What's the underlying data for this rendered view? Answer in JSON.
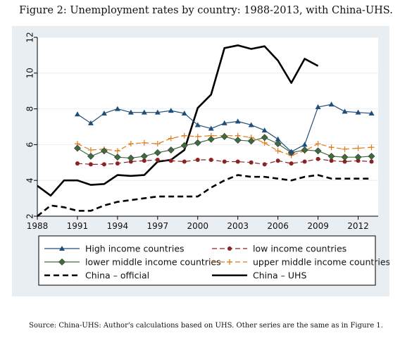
{
  "figure": {
    "title": "Figure 2: Unemployment rates by country: 1988-2013, with China-UHS.",
    "source": "Source: China-UHS: Author's calculations based on UHS. Other series are the same as in Figure 1."
  },
  "chart_data": {
    "type": "line",
    "title": "",
    "xlabel": "",
    "ylabel": "",
    "xlim": [
      1988,
      2013.5
    ],
    "ylim": [
      2,
      12
    ],
    "x_ticks": [
      1988,
      1991,
      1994,
      1997,
      2000,
      2003,
      2006,
      2009,
      2012
    ],
    "y_ticks": [
      2,
      4,
      6,
      8,
      10,
      12
    ],
    "grid": "horizontal",
    "legend_position": "bottom",
    "colors": {
      "background": "#e9eef3",
      "grid": "#ffffff",
      "high_income": "#1f4e79",
      "low_income": "#8b2323",
      "lower_middle": "#3f6b3f",
      "upper_middle": "#e07b18",
      "china": "#000000"
    },
    "series": [
      {
        "name": "High income countries",
        "key": "high_income",
        "marker": "triangle",
        "dash": "solid",
        "x": [
          1991,
          1992,
          1993,
          1994,
          1995,
          1996,
          1997,
          1998,
          1999,
          2000,
          2001,
          2002,
          2003,
          2004,
          2005,
          2006,
          2007,
          2008,
          2009,
          2010,
          2011,
          2012,
          2013
        ],
        "y": [
          7.7,
          7.2,
          7.75,
          8.0,
          7.8,
          7.8,
          7.8,
          7.9,
          7.75,
          7.1,
          6.9,
          7.2,
          7.3,
          7.1,
          6.8,
          6.3,
          5.6,
          6.0,
          8.1,
          8.25,
          7.85,
          7.8,
          7.75
        ]
      },
      {
        "name": "low income countries",
        "key": "low_income",
        "marker": "circle",
        "dash": "dash",
        "x": [
          1991,
          1992,
          1993,
          1994,
          1995,
          1996,
          1997,
          1998,
          1999,
          2000,
          2001,
          2002,
          2003,
          2004,
          2005,
          2006,
          2007,
          2008,
          2009,
          2010,
          2011,
          2012,
          2013
        ],
        "y": [
          4.95,
          4.9,
          4.9,
          4.95,
          5.05,
          5.1,
          5.15,
          5.1,
          5.05,
          5.15,
          5.15,
          5.05,
          5.05,
          5.0,
          4.9,
          5.1,
          4.95,
          5.05,
          5.2,
          5.1,
          5.05,
          5.1,
          5.05
        ]
      },
      {
        "name": "lower middle income countries",
        "key": "lower_middle",
        "marker": "diamond",
        "dash": "solid",
        "x": [
          1991,
          1992,
          1993,
          1994,
          1995,
          1996,
          1997,
          1998,
          1999,
          2000,
          2001,
          2002,
          2003,
          2004,
          2005,
          2006,
          2007,
          2008,
          2009,
          2010,
          2011,
          2012,
          2013
        ],
        "y": [
          5.8,
          5.35,
          5.65,
          5.3,
          5.25,
          5.35,
          5.55,
          5.7,
          5.95,
          6.1,
          6.3,
          6.45,
          6.25,
          6.2,
          6.4,
          6.05,
          5.55,
          5.7,
          5.65,
          5.35,
          5.3,
          5.3,
          5.35
        ]
      },
      {
        "name": "upper middle income countries",
        "key": "upper_middle",
        "marker": "plus",
        "dash": "dash",
        "x": [
          1991,
          1992,
          1993,
          1994,
          1995,
          1996,
          1997,
          1998,
          1999,
          2000,
          2001,
          2002,
          2003,
          2004,
          2005,
          2006,
          2007,
          2008,
          2009,
          2010,
          2011,
          2012,
          2013
        ],
        "y": [
          6.05,
          5.7,
          5.75,
          5.65,
          6.05,
          6.1,
          6.05,
          6.35,
          6.5,
          6.45,
          6.5,
          6.5,
          6.5,
          6.4,
          6.1,
          5.65,
          5.4,
          5.65,
          6.05,
          5.85,
          5.75,
          5.8,
          5.85
        ]
      },
      {
        "name": "China – official",
        "key": "china",
        "marker": "none",
        "dash": "dash-heavy",
        "x": [
          1988,
          1989,
          1990,
          1991,
          1992,
          1993,
          1994,
          1995,
          1996,
          1997,
          1998,
          1999,
          2000,
          2001,
          2002,
          2003,
          2004,
          2005,
          2006,
          2007,
          2008,
          2009,
          2010,
          2011,
          2012,
          2013
        ],
        "y": [
          2.0,
          2.6,
          2.5,
          2.3,
          2.3,
          2.6,
          2.8,
          2.9,
          3.0,
          3.1,
          3.1,
          3.1,
          3.1,
          3.6,
          4.0,
          4.3,
          4.2,
          4.2,
          4.1,
          4.0,
          4.2,
          4.3,
          4.1,
          4.1,
          4.1,
          4.1
        ]
      },
      {
        "name": "China – UHS",
        "key": "china",
        "marker": "none",
        "dash": "solid-heavy",
        "x": [
          1988,
          1989,
          1990,
          1991,
          1992,
          1993,
          1994,
          1995,
          1996,
          1997,
          1998,
          1999,
          2000,
          2001,
          2002,
          2003,
          2004,
          2005,
          2006,
          2007,
          2008,
          2009
        ],
        "y": [
          3.7,
          3.15,
          4.0,
          4.0,
          3.75,
          3.8,
          4.3,
          4.25,
          4.3,
          5.05,
          5.15,
          5.7,
          8.05,
          8.8,
          11.4,
          11.55,
          11.35,
          11.5,
          10.7,
          9.45,
          10.8,
          10.4
        ]
      }
    ]
  }
}
